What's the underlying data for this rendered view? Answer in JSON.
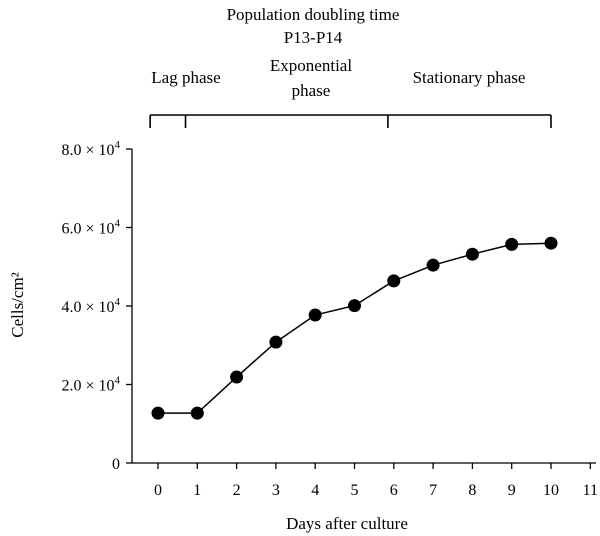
{
  "chart_data": {
    "type": "line",
    "title": "Population doubling time",
    "subtitle": "P13-P14",
    "xlabel": "Days after culture",
    "ylabel": "Cells/cm²",
    "xlim": [
      -1,
      11
    ],
    "ylim": [
      0,
      80000
    ],
    "x_ticks": [
      0,
      1,
      2,
      3,
      4,
      5,
      6,
      7,
      8,
      9,
      10,
      11
    ],
    "x_tick_labels": [
      "0",
      "1",
      "2",
      "3",
      "4",
      "5",
      "6",
      "7",
      "8",
      "9",
      "10",
      "11"
    ],
    "y_ticks": [
      0,
      20000,
      40000,
      60000,
      80000
    ],
    "y_tick_labels": [
      {
        "value": 0,
        "mantissa": "0",
        "exp": ""
      },
      {
        "value": 20000,
        "mantissa": "2.0 × 10",
        "exp": "4"
      },
      {
        "value": 40000,
        "mantissa": "4.0 × 10",
        "exp": "4"
      },
      {
        "value": 60000,
        "mantissa": "6.0 × 10",
        "exp": "4"
      },
      {
        "value": 80000,
        "mantissa": "8.0 × 10",
        "exp": "4"
      }
    ],
    "series": [
      {
        "x": [
          0,
          1,
          2,
          3,
          4,
          5,
          6,
          7,
          8,
          9,
          10
        ],
        "y": [
          12700,
          12700,
          21900,
          30800,
          37700,
          40100,
          46400,
          50400,
          53200,
          55700,
          56000
        ],
        "marker": "filled-circle",
        "color": "#000000"
      }
    ],
    "phases": [
      {
        "label_lines": [
          "Lag phase"
        ],
        "x_start": -0.2,
        "x_end": 0.7
      },
      {
        "label_lines": [
          "Exponential",
          "phase"
        ],
        "x_start": 0.7,
        "x_end": 5.85
      },
      {
        "label_lines": [
          "Stationary phase"
        ],
        "x_start": 5.85,
        "x_end": 10
      }
    ],
    "grid": false
  }
}
